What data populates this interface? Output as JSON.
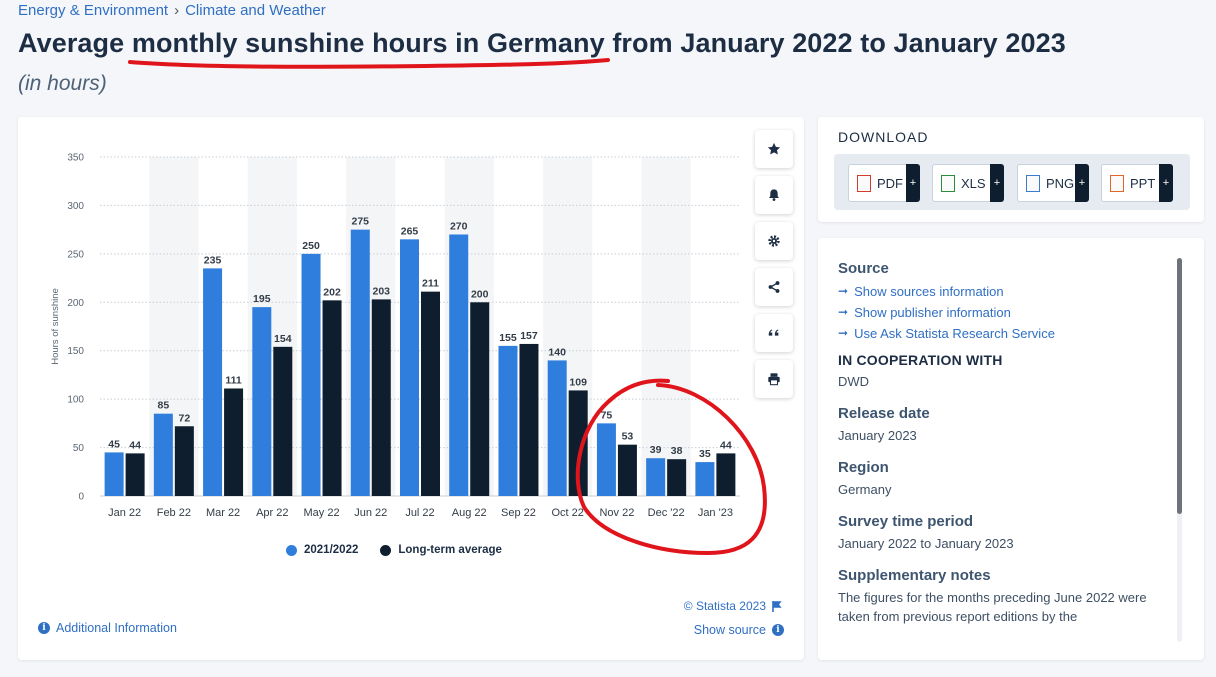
{
  "breadcrumb": {
    "item1": "Energy & Environment",
    "separator": "›",
    "item2": "Climate and Weather"
  },
  "title": "Average monthly sunshine hours in Germany from January 2022 to January 2023",
  "subtitle": "(in hours)",
  "toolbar": {
    "star": "star-icon",
    "bell": "bell-icon",
    "gear": "gear-icon",
    "share": "share-icon",
    "quote": "quote-icon",
    "print": "print-icon"
  },
  "chart_data": {
    "type": "bar",
    "categories": [
      "Jan 22",
      "Feb 22",
      "Mar 22",
      "Apr 22",
      "May 22",
      "Jun 22",
      "Jul 22",
      "Aug 22",
      "Sep 22",
      "Oct 22",
      "Nov 22",
      "Dec '22",
      "Jan '23"
    ],
    "series": [
      {
        "name": "2021/2022",
        "color": "#2f7ede",
        "values": [
          45,
          85,
          235,
          195,
          250,
          275,
          265,
          270,
          155,
          140,
          75,
          39,
          35
        ]
      },
      {
        "name": "Long-term average",
        "color": "#0f1e2e",
        "values": [
          44,
          72,
          111,
          154,
          202,
          203,
          211,
          200,
          157,
          109,
          53,
          38,
          44
        ]
      }
    ],
    "ylabel": "Hours of sunshine",
    "xlabel": "",
    "ylim": [
      0,
      350
    ],
    "yticks": [
      0,
      50,
      100,
      150,
      200,
      250,
      300,
      350
    ],
    "grid": true,
    "legend": "bottom-center",
    "data_labels": true,
    "annotations": [
      "red freehand circle around Nov 22 – Jan '23",
      "red underline under 'monthly sunshine hours in Germany'"
    ]
  },
  "footer": {
    "credit": "© Statista 2023",
    "show_source": "Show source",
    "additional_info": "Additional Information"
  },
  "download": {
    "title": "DOWNLOAD",
    "buttons": [
      {
        "label": "PDF",
        "color": "#d23b2e"
      },
      {
        "label": "XLS",
        "color": "#2d8c3c"
      },
      {
        "label": "PNG",
        "color": "#3c7ccc"
      },
      {
        "label": "PPT",
        "color": "#e0662b"
      }
    ],
    "plus": "+"
  },
  "info": {
    "source_head": "Source",
    "source_links": [
      "Show sources information",
      "Show publisher information",
      "Use Ask Statista Research Service"
    ],
    "coop_head": "IN COOPERATION WITH",
    "coop_value": "DWD",
    "release_head": "Release date",
    "release_value": "January 2023",
    "region_head": "Region",
    "region_value": "Germany",
    "period_head": "Survey time period",
    "period_value": "January 2022 to January 2023",
    "notes_head": "Supplementary notes",
    "notes_value": "The figures for the months preceding June 2022 were taken from previous report editions by the"
  }
}
